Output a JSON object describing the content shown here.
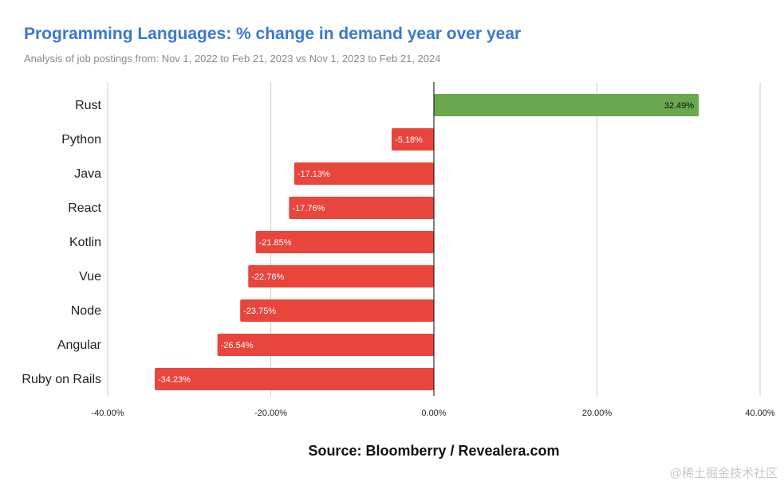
{
  "colors": {
    "title": "#3b78d0",
    "positive": "#6aa84f",
    "negative": "#e8453c",
    "grid": "#cccccc",
    "axis": "#000000"
  },
  "source": "Source: Bloomberry / Revealera.com",
  "watermark": "@稀土掘金技术社区",
  "chart_data": {
    "type": "bar",
    "orientation": "horizontal",
    "title": "Programming Languages: % change in demand year over year",
    "subtitle": "Analysis of job postings from: Nov 1, 2022 to Feb 21, 2023 vs Nov 1, 2023 to Feb 21, 2024",
    "categories": [
      "Rust",
      "Python",
      "Java",
      "React",
      "Kotlin",
      "Vue",
      "Node",
      "Angular",
      "Ruby on Rails"
    ],
    "values": [
      32.49,
      -5.18,
      -17.13,
      -17.76,
      -21.85,
      -22.76,
      -23.75,
      -26.54,
      -34.23
    ],
    "value_labels": [
      "32.49%",
      "-5.18%",
      "-17.13%",
      "-17.76%",
      "-21.85%",
      "-22.76%",
      "-23.75%",
      "-26.54%",
      "-34.23%"
    ],
    "xlim": [
      -40,
      40
    ],
    "xticks": [
      -40,
      -20,
      0,
      20,
      40
    ],
    "xtick_labels": [
      "-40.00%",
      "-20.00%",
      "0.00%",
      "20.00%",
      "40.00%"
    ],
    "xlabel": "",
    "ylabel": "",
    "grid": true,
    "legend": "none"
  }
}
